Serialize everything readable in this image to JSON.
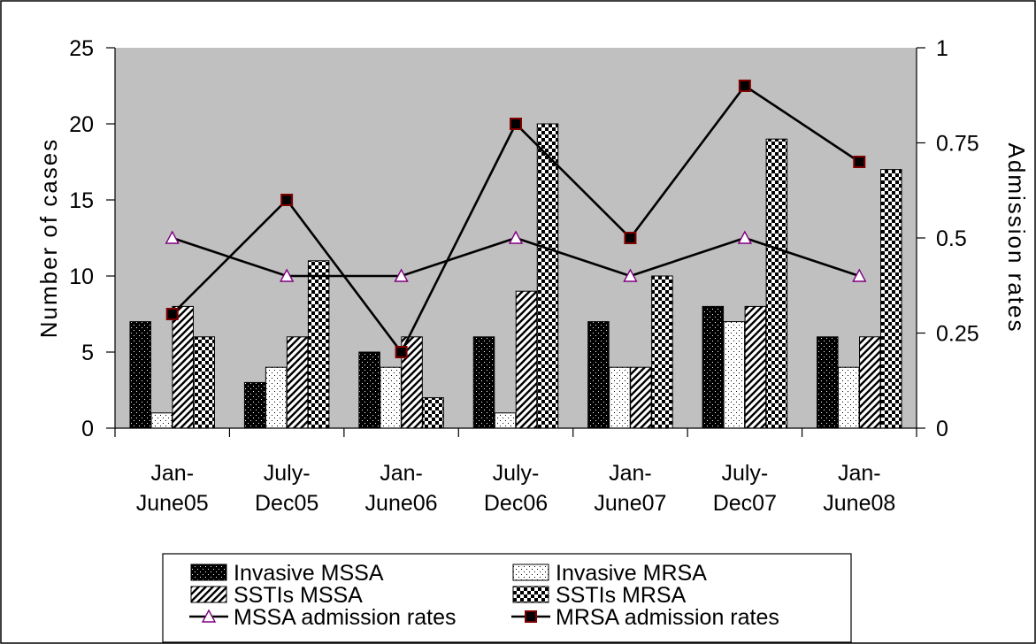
{
  "chart_data": {
    "type": "bar",
    "categories": [
      [
        "Jan-",
        "June05"
      ],
      [
        "July-",
        "Dec05"
      ],
      [
        "Jan-",
        "June06"
      ],
      [
        "July-",
        "Dec06"
      ],
      [
        "Jan-",
        "June07"
      ],
      [
        "July-",
        "Dec07"
      ],
      [
        "Jan-",
        "June08"
      ]
    ],
    "series": [
      {
        "name": "Invasive MSSA",
        "kind": "bar",
        "pattern": "dots-dark",
        "axis": "left",
        "values": [
          7,
          3,
          5,
          6,
          7,
          8,
          6
        ]
      },
      {
        "name": "Invasive MRSA",
        "kind": "bar",
        "pattern": "dots-light",
        "axis": "left",
        "values": [
          1,
          4,
          4,
          1,
          4,
          7,
          4
        ]
      },
      {
        "name": "SSTIs MSSA",
        "kind": "bar",
        "pattern": "diagonal",
        "axis": "left",
        "values": [
          8,
          6,
          6,
          9,
          4,
          8,
          6
        ]
      },
      {
        "name": "SSTIs MRSA",
        "kind": "bar",
        "pattern": "checker",
        "axis": "left",
        "values": [
          6,
          11,
          2,
          20,
          10,
          19,
          17
        ]
      },
      {
        "name": "MSSA admission rates",
        "kind": "line",
        "marker": "triangle",
        "axis": "right",
        "values": [
          0.5,
          0.4,
          0.4,
          0.5,
          0.4,
          0.5,
          0.4
        ]
      },
      {
        "name": "MRSA admission rates",
        "kind": "line",
        "marker": "square",
        "axis": "right",
        "values": [
          0.3,
          0.6,
          0.2,
          0.8,
          0.5,
          0.9,
          0.7
        ]
      }
    ],
    "ylabel": "Number of cases",
    "y2label": "Admission rates",
    "ylim": [
      0,
      25
    ],
    "y2lim": [
      0,
      1
    ],
    "yticks": [
      "0",
      "5",
      "10",
      "15",
      "20",
      "25"
    ],
    "y2ticks": [
      "0",
      "0.25",
      "0.5",
      "0.75",
      "1"
    ],
    "plot_background": "#c0c0c0",
    "triangle_color": "#800080",
    "square_edge_color": "#800000",
    "legend_position": "bottom"
  }
}
